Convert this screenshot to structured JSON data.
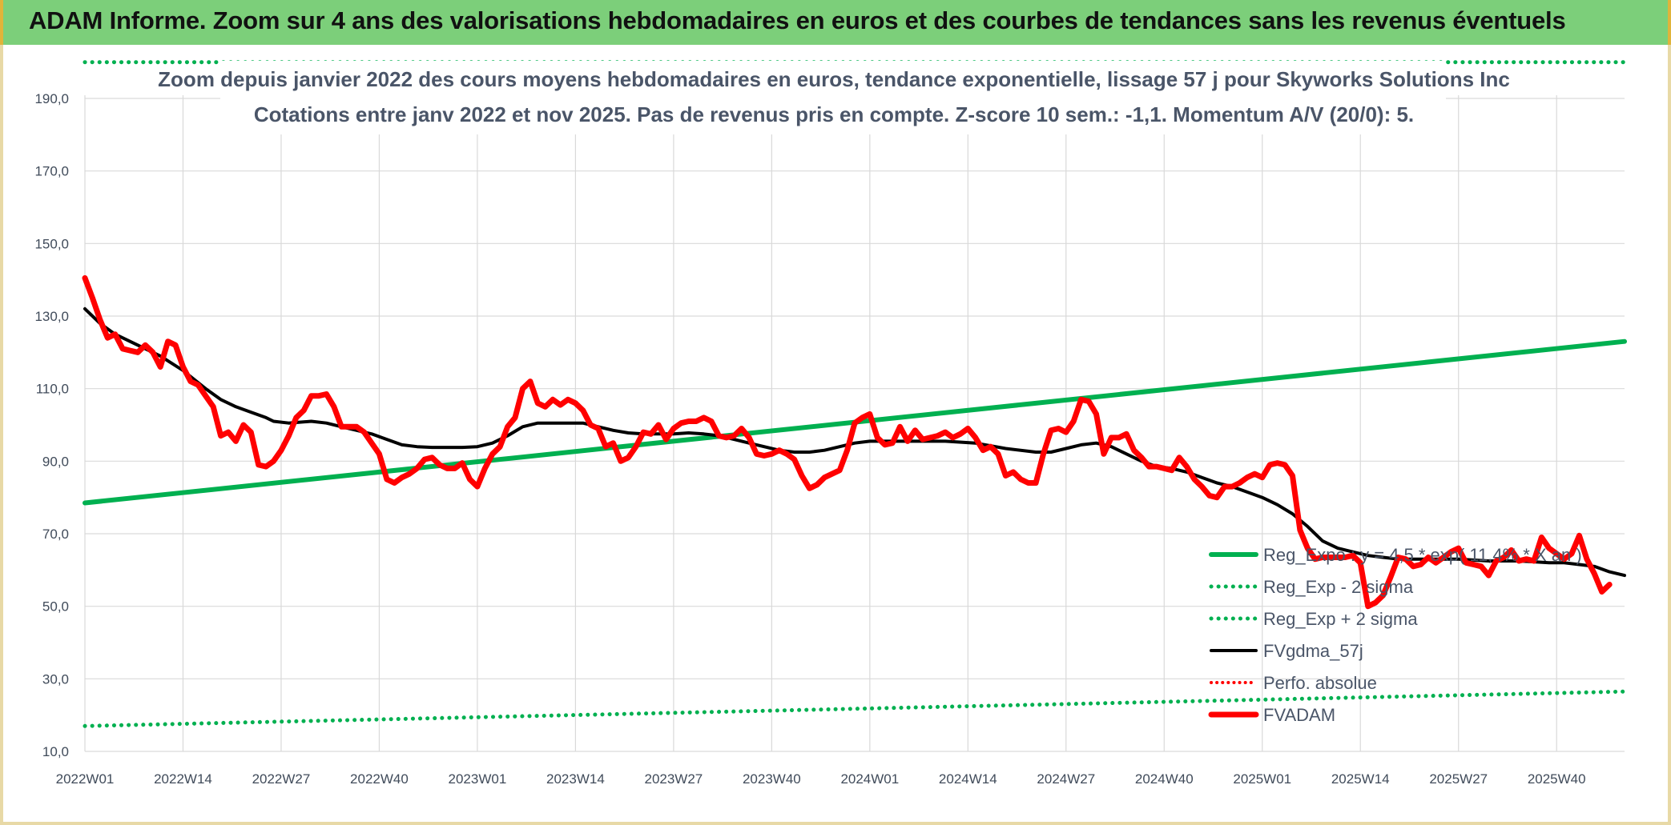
{
  "banner": {
    "title": "ADAM Informe. Zoom sur 4 ans des valorisations hebdomadaires en euros et des courbes de tendances sans les revenus éventuels"
  },
  "chart_data": {
    "type": "line",
    "title": "Zoom depuis janvier 2022 des cours moyens hebdomadaires en euros, tendance exponentielle, lissage 57 j pour Skyworks Solutions Inc",
    "subtitle": "Cotations entre janv 2022 et nov 2025. Pas de revenus pris en compte. Z-score 10 sem.: -1,1. Momentum A/V (20/0): 5.",
    "xlabel": "",
    "ylabel": "",
    "ylim": [
      10,
      200
    ],
    "yticks": [
      "10,0",
      "30,0",
      "50,0",
      "70,0",
      "90,0",
      "110,0",
      "130,0",
      "150,0",
      "170,0",
      "190,0"
    ],
    "yticks_values": [
      10,
      30,
      50,
      70,
      90,
      110,
      130,
      150,
      170,
      190
    ],
    "xticks": [
      "2022W01",
      "2022W14",
      "2022W27",
      "2022W40",
      "2023W01",
      "2023W14",
      "2023W27",
      "2023W40",
      "2024W01",
      "2024W14",
      "2024W27",
      "2024W40",
      "2025W01",
      "2025W14",
      "2025W27",
      "2025W40"
    ],
    "xticks_index": [
      0,
      13,
      26,
      39,
      52,
      65,
      78,
      91,
      104,
      117,
      130,
      143,
      156,
      169,
      182,
      195
    ],
    "n_weeks": 205,
    "grid": true,
    "legend_position": "bottom-right",
    "series": [
      {
        "name": "Reg_Expo : y = 4,5 * exp( 11,4% * X an )",
        "style": "solid",
        "color": "#00b050",
        "points": [
          [
            0,
            78.5
          ],
          [
            204,
            123
          ]
        ]
      },
      {
        "name": "Reg_Exp - 2 sigma",
        "style": "dotted",
        "color": "#00b050",
        "points": [
          [
            0,
            17
          ],
          [
            204,
            26.5
          ]
        ]
      },
      {
        "name": "Reg_Exp + 2 sigma",
        "style": "dotted",
        "color": "#00b050",
        "points": [
          [
            0,
            200
          ],
          [
            204,
            200
          ]
        ]
      },
      {
        "name": "FVgdma_57j",
        "style": "solid",
        "color": "#000000",
        "points": [
          [
            0,
            132
          ],
          [
            2,
            128
          ],
          [
            4,
            125
          ],
          [
            7,
            122
          ],
          [
            10,
            119
          ],
          [
            13,
            115
          ],
          [
            16,
            110
          ],
          [
            18,
            107
          ],
          [
            20,
            105
          ],
          [
            22,
            103.5
          ],
          [
            24,
            102
          ],
          [
            25,
            101
          ],
          [
            27,
            100.5
          ],
          [
            30,
            101
          ],
          [
            32,
            100.5
          ],
          [
            34,
            99.5
          ],
          [
            36,
            98.5
          ],
          [
            38,
            97.5
          ],
          [
            40,
            96
          ],
          [
            42,
            94.5
          ],
          [
            44,
            94
          ],
          [
            46,
            93.8
          ],
          [
            48,
            93.8
          ],
          [
            50,
            93.8
          ],
          [
            52,
            94
          ],
          [
            54,
            95
          ],
          [
            56,
            97
          ],
          [
            58,
            99.5
          ],
          [
            60,
            100.5
          ],
          [
            62,
            100.5
          ],
          [
            64,
            100.5
          ],
          [
            66,
            100.5
          ],
          [
            68,
            99.5
          ],
          [
            70,
            98.5
          ],
          [
            72,
            97.8
          ],
          [
            74,
            97.5
          ],
          [
            76,
            97.5
          ],
          [
            78,
            97.5
          ],
          [
            80,
            97.8
          ],
          [
            82,
            97.5
          ],
          [
            84,
            97
          ],
          [
            86,
            96
          ],
          [
            88,
            95
          ],
          [
            90,
            94
          ],
          [
            92,
            93
          ],
          [
            94,
            92.5
          ],
          [
            96,
            92.5
          ],
          [
            98,
            93
          ],
          [
            100,
            94
          ],
          [
            102,
            95
          ],
          [
            104,
            95.5
          ],
          [
            106,
            95.5
          ],
          [
            110,
            95.5
          ],
          [
            114,
            95.5
          ],
          [
            118,
            95
          ],
          [
            122,
            93.5
          ],
          [
            126,
            92.5
          ],
          [
            128,
            92.5
          ],
          [
            130,
            93.5
          ],
          [
            132,
            94.5
          ],
          [
            134,
            95
          ],
          [
            136,
            94
          ],
          [
            138,
            92
          ],
          [
            140,
            90
          ],
          [
            142,
            88.5
          ],
          [
            144,
            88
          ],
          [
            146,
            87
          ],
          [
            148,
            85.5
          ],
          [
            150,
            84
          ],
          [
            152,
            83
          ],
          [
            154,
            81.5
          ],
          [
            156,
            80
          ],
          [
            158,
            78
          ],
          [
            160,
            75.5
          ],
          [
            162,
            72
          ],
          [
            164,
            68
          ],
          [
            166,
            66
          ],
          [
            168,
            65
          ],
          [
            170,
            64
          ],
          [
            172,
            63.5
          ],
          [
            174,
            63
          ],
          [
            178,
            63
          ],
          [
            182,
            63
          ],
          [
            186,
            62.5
          ],
          [
            190,
            62.5
          ],
          [
            194,
            62
          ],
          [
            196,
            62
          ],
          [
            198,
            61.5
          ],
          [
            200,
            61
          ],
          [
            202,
            59.5
          ],
          [
            204,
            58.5
          ]
        ]
      },
      {
        "name": "Perfo. absolue",
        "style": "dotted",
        "color": "#ff0000",
        "points": []
      },
      {
        "name": "FVADAM",
        "style": "solid",
        "color": "#ff0000",
        "points": [
          [
            0,
            140.5
          ],
          [
            1,
            135
          ],
          [
            2,
            129
          ],
          [
            3,
            124
          ],
          [
            4,
            125
          ],
          [
            5,
            121
          ],
          [
            6,
            120.5
          ],
          [
            7,
            120
          ],
          [
            8,
            122
          ],
          [
            9,
            120
          ],
          [
            10,
            116
          ],
          [
            11,
            123
          ],
          [
            12,
            122
          ],
          [
            13,
            116
          ],
          [
            14,
            112
          ],
          [
            15,
            111
          ],
          [
            16,
            108
          ],
          [
            17,
            105
          ],
          [
            18,
            97
          ],
          [
            19,
            98
          ],
          [
            20,
            95.5
          ],
          [
            21,
            100
          ],
          [
            22,
            98
          ],
          [
            23,
            89
          ],
          [
            24,
            88.5
          ],
          [
            25,
            90
          ],
          [
            26,
            93
          ],
          [
            27,
            97
          ],
          [
            28,
            102
          ],
          [
            29,
            104
          ],
          [
            30,
            108
          ],
          [
            31,
            108
          ],
          [
            32,
            108.5
          ],
          [
            33,
            105
          ],
          [
            34,
            99.5
          ],
          [
            35,
            99.5
          ],
          [
            36,
            99.5
          ],
          [
            37,
            98
          ],
          [
            38,
            95
          ],
          [
            39,
            92
          ],
          [
            40,
            85
          ],
          [
            41,
            84
          ],
          [
            42,
            85.5
          ],
          [
            43,
            86.5
          ],
          [
            44,
            88
          ],
          [
            45,
            90.5
          ],
          [
            46,
            91
          ],
          [
            47,
            89
          ],
          [
            48,
            88
          ],
          [
            49,
            88
          ],
          [
            50,
            89.5
          ],
          [
            51,
            85
          ],
          [
            52,
            83
          ],
          [
            53,
            88
          ],
          [
            54,
            92
          ],
          [
            55,
            94
          ],
          [
            56,
            99.5
          ],
          [
            57,
            102
          ],
          [
            58,
            110
          ],
          [
            59,
            112
          ],
          [
            60,
            106
          ],
          [
            61,
            105
          ],
          [
            62,
            107
          ],
          [
            63,
            105.5
          ],
          [
            64,
            107
          ],
          [
            65,
            106
          ],
          [
            66,
            104
          ],
          [
            67,
            100
          ],
          [
            68,
            99
          ],
          [
            69,
            94
          ],
          [
            70,
            95
          ],
          [
            71,
            90
          ],
          [
            72,
            91
          ],
          [
            73,
            94
          ],
          [
            74,
            98
          ],
          [
            75,
            97.5
          ],
          [
            76,
            100
          ],
          [
            77,
            96
          ],
          [
            78,
            99
          ],
          [
            79,
            100.5
          ],
          [
            80,
            101
          ],
          [
            81,
            101
          ],
          [
            82,
            102
          ],
          [
            83,
            101
          ],
          [
            84,
            97
          ],
          [
            85,
            96.5
          ],
          [
            86,
            97
          ],
          [
            87,
            99
          ],
          [
            88,
            96.5
          ],
          [
            89,
            92
          ],
          [
            90,
            91.5
          ],
          [
            91,
            92
          ],
          [
            92,
            93
          ],
          [
            93,
            92
          ],
          [
            94,
            90.5
          ],
          [
            95,
            86
          ],
          [
            96,
            82.5
          ],
          [
            97,
            83.5
          ],
          [
            98,
            85.5
          ],
          [
            99,
            86.5
          ],
          [
            100,
            87.5
          ],
          [
            101,
            93
          ],
          [
            102,
            100.5
          ],
          [
            103,
            102
          ],
          [
            104,
            103
          ],
          [
            105,
            96.5
          ],
          [
            106,
            94.5
          ],
          [
            107,
            95
          ],
          [
            108,
            99.5
          ],
          [
            109,
            95.5
          ],
          [
            110,
            98.5
          ],
          [
            111,
            96
          ],
          [
            112,
            96.5
          ],
          [
            113,
            97
          ],
          [
            114,
            98
          ],
          [
            115,
            96.5
          ],
          [
            116,
            97.5
          ],
          [
            117,
            99
          ],
          [
            118,
            96.5
          ],
          [
            119,
            93
          ],
          [
            120,
            94
          ],
          [
            121,
            92
          ],
          [
            122,
            86
          ],
          [
            123,
            87
          ],
          [
            124,
            85
          ],
          [
            125,
            84
          ],
          [
            126,
            84
          ],
          [
            127,
            92
          ],
          [
            128,
            98.5
          ],
          [
            129,
            99
          ],
          [
            130,
            98
          ],
          [
            131,
            101
          ],
          [
            132,
            107
          ],
          [
            133,
            106.5
          ],
          [
            134,
            103
          ],
          [
            135,
            92
          ],
          [
            136,
            96.5
          ],
          [
            137,
            96.5
          ],
          [
            138,
            97.5
          ],
          [
            139,
            93
          ],
          [
            140,
            91
          ],
          [
            141,
            88.5
          ],
          [
            142,
            88.5
          ],
          [
            143,
            88
          ],
          [
            144,
            87.5
          ],
          [
            145,
            91
          ],
          [
            146,
            88.5
          ],
          [
            147,
            85
          ],
          [
            148,
            83
          ],
          [
            149,
            80.5
          ],
          [
            150,
            80
          ],
          [
            151,
            83
          ],
          [
            152,
            83
          ],
          [
            153,
            84
          ],
          [
            154,
            85.5
          ],
          [
            155,
            86.5
          ],
          [
            156,
            85.5
          ],
          [
            157,
            89
          ],
          [
            158,
            89.5
          ],
          [
            159,
            89
          ],
          [
            160,
            86
          ],
          [
            161,
            71
          ],
          [
            162,
            66
          ],
          [
            163,
            63
          ],
          [
            164,
            63.5
          ],
          [
            165,
            63.5
          ],
          [
            166,
            63.5
          ],
          [
            167,
            63.5
          ],
          [
            168,
            64
          ],
          [
            169,
            62
          ],
          [
            170,
            50
          ],
          [
            171,
            51
          ],
          [
            172,
            53
          ],
          [
            173,
            58
          ],
          [
            174,
            63.5
          ],
          [
            175,
            63
          ],
          [
            176,
            61
          ],
          [
            177,
            61.5
          ],
          [
            178,
            63.5
          ],
          [
            179,
            62
          ],
          [
            180,
            63.5
          ],
          [
            181,
            65
          ],
          [
            182,
            66
          ],
          [
            183,
            62
          ],
          [
            184,
            61.5
          ],
          [
            185,
            61
          ],
          [
            186,
            58.5
          ],
          [
            187,
            62.5
          ],
          [
            188,
            63.5
          ],
          [
            189,
            65.5
          ],
          [
            190,
            62.5
          ],
          [
            191,
            63
          ],
          [
            192,
            62.5
          ],
          [
            193,
            69
          ],
          [
            194,
            66
          ],
          [
            195,
            64.5
          ],
          [
            196,
            63
          ],
          [
            197,
            64.5
          ],
          [
            198,
            69.5
          ],
          [
            199,
            63
          ],
          [
            200,
            59
          ],
          [
            201,
            54
          ],
          [
            202,
            56
          ]
        ]
      }
    ]
  }
}
